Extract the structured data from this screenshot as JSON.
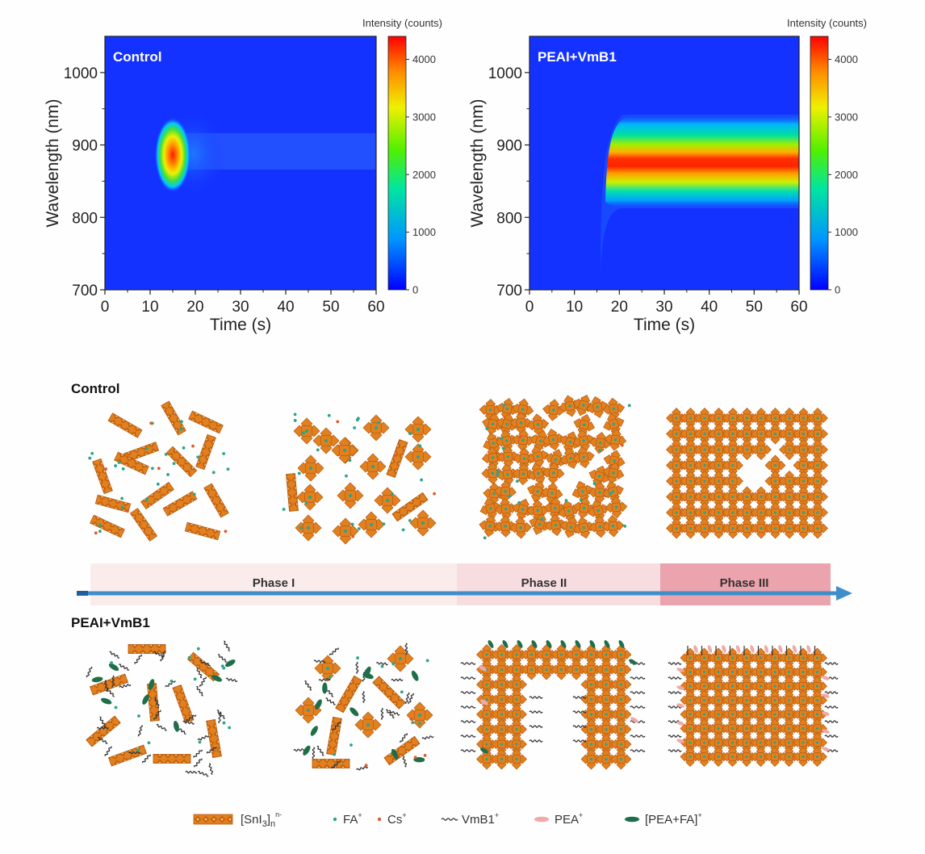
{
  "chart_data": [
    {
      "type": "heatmap",
      "panel_label": "Control",
      "xlabel": "Time (s)",
      "ylabel": "Wavelength (nm)",
      "xlim": [
        0,
        60
      ],
      "ylim": [
        700,
        1050
      ],
      "xticks": [
        "0",
        "10",
        "20",
        "30",
        "40",
        "50",
        "60"
      ],
      "yticks": [
        "700",
        "800",
        "900",
        "1000"
      ],
      "colorbar": {
        "title": "Intensity (counts)",
        "range": [
          0,
          4400
        ],
        "ticks": [
          "0",
          "1000",
          "2000",
          "3000",
          "4000"
        ]
      },
      "features": [
        {
          "kind": "transient_peak",
          "onset_time": 12,
          "peak_time": 15,
          "peak_wavelength": 885,
          "peak_intensity": 4400,
          "decay_end_time": 25
        },
        {
          "kind": "weak_band",
          "start_time": 20,
          "end_time": 60,
          "wavelength": 880,
          "intensity": 400
        }
      ]
    },
    {
      "type": "heatmap",
      "panel_label": "PEAI+VmB1",
      "xlabel": "Time (s)",
      "ylabel": "Wavelength (nm)",
      "xlim": [
        0,
        60
      ],
      "ylim": [
        700,
        1050
      ],
      "xticks": [
        "0",
        "10",
        "20",
        "30",
        "40",
        "50",
        "60"
      ],
      "yticks": [
        "700",
        "800",
        "900",
        "1000"
      ],
      "colorbar": {
        "title": "Intensity (counts)",
        "range": [
          0,
          4400
        ],
        "ticks": [
          "0",
          "1000",
          "2000",
          "3000",
          "4000"
        ]
      },
      "features": [
        {
          "kind": "sustained_band",
          "onset_time": 16,
          "center_wavelength": 873,
          "peak_intensity": 4300,
          "end_time": 60
        }
      ]
    }
  ],
  "diagram": {
    "row_labels": {
      "control": "Control",
      "additive": "PEAI+VmB1"
    },
    "phases": [
      "Phase I",
      "Phase II",
      "Phase III"
    ],
    "legend": [
      {
        "icon": "sni3-chain-icon",
        "label": "[SnI",
        "sub": "3",
        "tail": "]",
        "sub2": "n",
        "sup": "n-"
      },
      {
        "icon": "fa-dot-icon",
        "label": "FA",
        "sup": "+",
        "color": "#2aa58a"
      },
      {
        "icon": "cs-dot-icon",
        "label": "Cs",
        "sup": "+",
        "color": "#e05a2a"
      },
      {
        "icon": "vmb1-wave-icon",
        "label": "VmB1",
        "sup": "+",
        "color": "#333333"
      },
      {
        "icon": "pea-ellipse-icon",
        "label": "PEA",
        "sup": "+",
        "color": "#f0a8a8"
      },
      {
        "icon": "pea-fa-ellipse-icon",
        "label": "[PEA+FA]",
        "sup": "+",
        "color": "#1e6e4a"
      }
    ],
    "colors": {
      "octahedron": "#e07b1e",
      "octahedron_edge": "#b35a10",
      "arrow": "#3d8ec9",
      "phase1": "#fbe9ea",
      "phase2": "#f7dadd",
      "phase3": "#eaa0ac"
    }
  }
}
